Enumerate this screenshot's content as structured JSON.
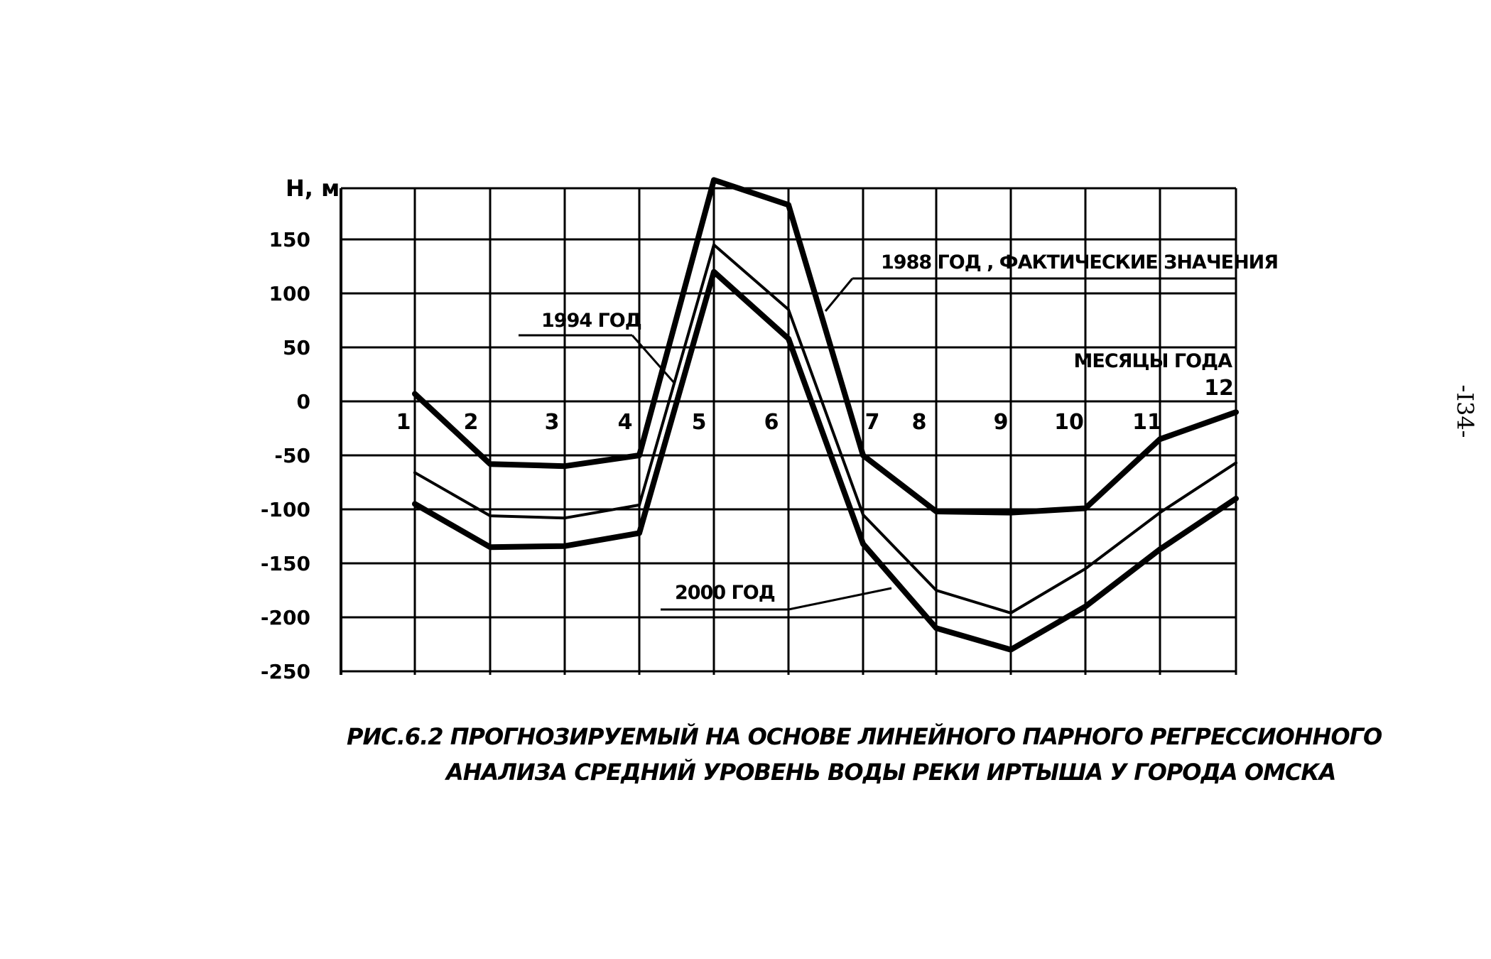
{
  "chart_data": {
    "type": "line",
    "ylabel": "H, м",
    "xlabel": "МЕСЯЦЫ ГОДА",
    "y_ticks": [
      150,
      100,
      50,
      0,
      -50,
      -100,
      -150,
      -200,
      -250
    ],
    "ylim": [
      -250,
      200
    ],
    "x_ticks": [
      "1",
      "2",
      "3",
      "4",
      "5",
      "6",
      "7",
      "8",
      "9",
      "10",
      "11",
      "12"
    ],
    "grid": true,
    "series": [
      {
        "name": "1988 ГОД , ФАКТИЧЕСКИЕ ЗНАЧЕНИЯ",
        "style": "thick",
        "points": [
          [
            1,
            7
          ],
          [
            2,
            -58
          ],
          [
            3,
            -60
          ],
          [
            4,
            -50
          ],
          [
            5,
            205
          ],
          [
            6,
            182
          ],
          [
            7,
            -50
          ],
          [
            8,
            -102
          ],
          [
            9,
            -103
          ],
          [
            10,
            -99
          ],
          [
            11,
            -35
          ],
          [
            12,
            -10
          ]
        ]
      },
      {
        "name": "1994 ГОД",
        "style": "thin",
        "points": [
          [
            1,
            -66
          ],
          [
            2,
            -106
          ],
          [
            3,
            -108
          ],
          [
            4,
            -96
          ],
          [
            5,
            145
          ],
          [
            6,
            85
          ],
          [
            7,
            -105
          ],
          [
            8,
            -175
          ],
          [
            9,
            -196
          ],
          [
            10,
            -155
          ],
          [
            11,
            -103
          ],
          [
            12,
            -57
          ]
        ]
      },
      {
        "name": "2000 ГОД",
        "style": "thick",
        "points": [
          [
            1,
            -95
          ],
          [
            2,
            -135
          ],
          [
            3,
            -134
          ],
          [
            4,
            -122
          ],
          [
            5,
            120
          ],
          [
            6,
            58
          ],
          [
            7,
            -132
          ],
          [
            8,
            -210
          ],
          [
            9,
            -230
          ],
          [
            10,
            -190
          ],
          [
            11,
            -137
          ],
          [
            12,
            -90
          ]
        ]
      }
    ]
  },
  "caption": {
    "line1": "РИС.6.2 ПРОГНОЗИРУЕМЫЙ НА ОСНОВЕ ЛИНЕЙНОГО ПАРНОГО РЕГРЕССИОННОГО",
    "line2": "АНАЛИЗА СРЕДНИЙ УРОВЕНЬ ВОДЫ РЕКИ ИРТЫША У ГОРОДА ОМСКА"
  },
  "page_number": "-I34-",
  "colors": {
    "ink": "#000000",
    "paper": "#ffffff"
  }
}
